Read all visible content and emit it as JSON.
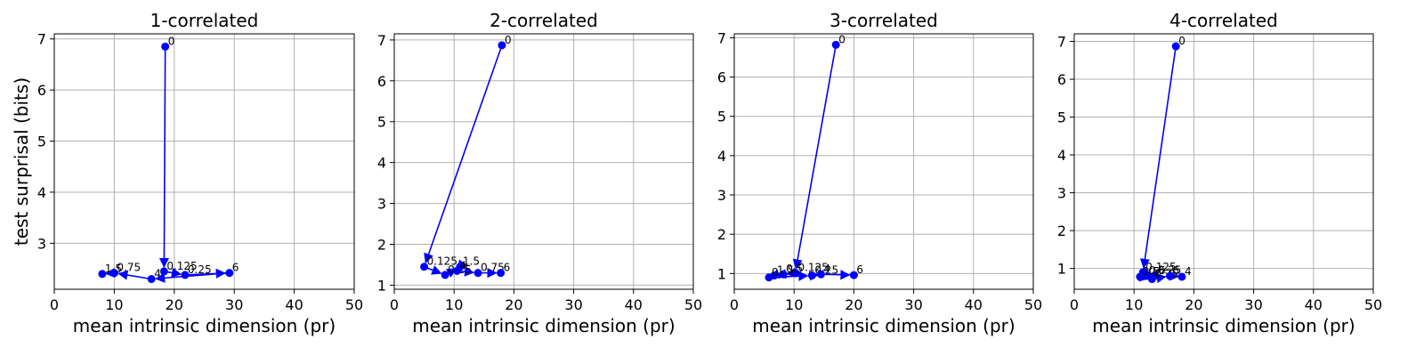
{
  "chart_data": [
    {
      "type": "line",
      "title": "1-correlated",
      "xlabel": "mean intrinsic dimension (pr)",
      "ylabel": "test surprisal (bits)",
      "xlim": [
        0,
        50
      ],
      "ylim": [
        2.1,
        7.1
      ],
      "xticks": [
        "0",
        "10",
        "20",
        "30",
        "40",
        "50"
      ],
      "yticks": [
        "3",
        "4",
        "5",
        "6",
        "7"
      ],
      "grid": true,
      "color": "#0000ff",
      "points": [
        {
          "label": "0",
          "x": 18.5,
          "y": 6.85
        },
        {
          "label": "0.125",
          "x": 18.3,
          "y": 2.45
        },
        {
          "label": "0.25",
          "x": 21.8,
          "y": 2.38
        },
        {
          "label": "6",
          "x": 29.2,
          "y": 2.42
        },
        {
          "label": "4",
          "x": 16.2,
          "y": 2.3
        },
        {
          "label": "0.75",
          "x": 10.0,
          "y": 2.42
        },
        {
          "label": "1.5",
          "x": 8.0,
          "y": 2.4
        }
      ]
    },
    {
      "type": "line",
      "title": "2-correlated",
      "xlabel": "mean intrinsic dimension (pr)",
      "ylabel": "",
      "xlim": [
        0,
        50
      ],
      "ylim": [
        0.9,
        7.15
      ],
      "xticks": [
        "0",
        "10",
        "20",
        "30",
        "40",
        "50"
      ],
      "yticks": [
        "1",
        "2",
        "3",
        "4",
        "5",
        "6",
        "7"
      ],
      "grid": true,
      "color": "#0000ff",
      "points": [
        {
          "label": "0",
          "x": 18.0,
          "y": 6.87
        },
        {
          "label": "0.125",
          "x": 5.0,
          "y": 1.45
        },
        {
          "label": "0.25",
          "x": 8.5,
          "y": 1.25
        },
        {
          "label": "1.5",
          "x": 11.0,
          "y": 1.45
        },
        {
          "label": "4",
          "x": 10.5,
          "y": 1.35
        },
        {
          "label": "0.75",
          "x": 14.0,
          "y": 1.3
        },
        {
          "label": "6",
          "x": 17.8,
          "y": 1.3
        }
      ]
    },
    {
      "type": "line",
      "title": "3-correlated",
      "xlabel": "mean intrinsic dimension (pr)",
      "ylabel": "",
      "xlim": [
        0,
        50
      ],
      "ylim": [
        0.6,
        7.1
      ],
      "xticks": [
        "0",
        "10",
        "20",
        "30",
        "40",
        "50"
      ],
      "yticks": [
        "1",
        "2",
        "3",
        "4",
        "5",
        "6",
        "7"
      ],
      "grid": true,
      "color": "#0000ff",
      "points": [
        {
          "label": "0",
          "x": 17.0,
          "y": 6.82
        },
        {
          "label": "0.125",
          "x": 10.2,
          "y": 1.02
        },
        {
          "label": "0.5",
          "x": 8.2,
          "y": 0.98
        },
        {
          "label": "1.5",
          "x": 6.7,
          "y": 0.95
        },
        {
          "label": "0",
          "x": 5.8,
          "y": 0.9
        },
        {
          "label": "0.25",
          "x": 13.0,
          "y": 0.95
        },
        {
          "label": "4",
          "x": 14.5,
          "y": 0.98
        },
        {
          "label": "6",
          "x": 20.0,
          "y": 0.96
        }
      ]
    },
    {
      "type": "line",
      "title": "4-correlated",
      "xlabel": "mean intrinsic dimension (pr)",
      "ylabel": "",
      "xlim": [
        0,
        50
      ],
      "ylim": [
        0.45,
        7.2
      ],
      "xticks": [
        "0",
        "10",
        "20",
        "30",
        "40",
        "50"
      ],
      "yticks": [
        "1",
        "2",
        "3",
        "4",
        "5",
        "6",
        "7"
      ],
      "grid": true,
      "color": "#0000ff",
      "points": [
        {
          "label": "0",
          "x": 17.0,
          "y": 6.87
        },
        {
          "label": "0.125",
          "x": 11.5,
          "y": 0.9
        },
        {
          "label": "0.25",
          "x": 13.5,
          "y": 0.82
        },
        {
          "label": "0.5",
          "x": 12.0,
          "y": 0.8
        },
        {
          "label": "1.5",
          "x": 11.0,
          "y": 0.78
        },
        {
          "label": "0.75",
          "x": 13.0,
          "y": 0.72
        },
        {
          "label": "6",
          "x": 16.0,
          "y": 0.8
        },
        {
          "label": "4",
          "x": 18.0,
          "y": 0.78
        }
      ]
    }
  ]
}
